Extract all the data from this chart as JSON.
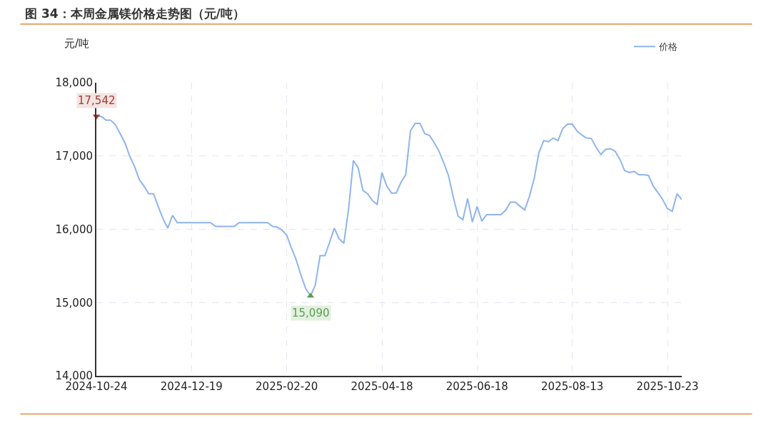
{
  "chart_data": {
    "type": "line",
    "title": "图 34：本周金属镁价格走势图（元/吨）",
    "ylabel": "元/吨",
    "categories": [
      "2024-10-24",
      null,
      null,
      null,
      null,
      null,
      null,
      null,
      null,
      null,
      null,
      null,
      null,
      null,
      null,
      null,
      null,
      null,
      null,
      null,
      "2024-12-19",
      null,
      null,
      null,
      null,
      null,
      null,
      null,
      null,
      null,
      null,
      null,
      null,
      null,
      null,
      null,
      null,
      null,
      null,
      null,
      "2025-02-20",
      null,
      null,
      null,
      null,
      null,
      null,
      null,
      null,
      null,
      null,
      null,
      null,
      null,
      null,
      null,
      null,
      null,
      null,
      null,
      "2025-04-18",
      null,
      null,
      null,
      null,
      null,
      null,
      null,
      null,
      null,
      null,
      null,
      null,
      null,
      null,
      null,
      null,
      null,
      null,
      null,
      "2025-06-18",
      null,
      null,
      null,
      null,
      null,
      null,
      null,
      null,
      null,
      null,
      null,
      null,
      null,
      null,
      null,
      null,
      null,
      null,
      null,
      "2025-08-13",
      null,
      null,
      null,
      null,
      null,
      null,
      null,
      null,
      null,
      null,
      null,
      null,
      null,
      null,
      null,
      null,
      null,
      null,
      null,
      "2025-10-23",
      null,
      null,
      null
    ],
    "series": [
      {
        "name": "价格",
        "color": "#8fb4ec",
        "values": [
          17542,
          17542,
          17490,
          17490,
          17425,
          17305,
          17180,
          17000,
          16860,
          16680,
          16590,
          16485,
          16485,
          16310,
          16145,
          16015,
          16190,
          16090,
          16090,
          16090,
          16090,
          16090,
          16090,
          16090,
          16090,
          16040,
          16040,
          16040,
          16040,
          16040,
          16090,
          16090,
          16090,
          16090,
          16090,
          16090,
          16090,
          16040,
          16030,
          15990,
          15920,
          15740,
          15580,
          15370,
          15190,
          15090,
          15240,
          15640,
          15640,
          15820,
          16015,
          15870,
          15810,
          16280,
          16940,
          16840,
          16530,
          16485,
          16390,
          16340,
          16775,
          16590,
          16495,
          16495,
          16640,
          16745,
          17345,
          17445,
          17445,
          17305,
          17280,
          17180,
          17065,
          16905,
          16730,
          16435,
          16180,
          16130,
          16420,
          16100,
          16310,
          16110,
          16200,
          16200,
          16200,
          16200,
          16260,
          16370,
          16370,
          16315,
          16265,
          16450,
          16695,
          17050,
          17210,
          17195,
          17245,
          17210,
          17375,
          17435,
          17435,
          17340,
          17285,
          17245,
          17240,
          17120,
          17020,
          17090,
          17100,
          17065,
          16955,
          16800,
          16775,
          16790,
          16745,
          16745,
          16735,
          16590,
          16500,
          16405,
          16280,
          16245,
          16485,
          16405
        ],
        "value_labels": [
          "17,542",
          null,
          null,
          null,
          null,
          null,
          null,
          null,
          null,
          null,
          null,
          null,
          null,
          null,
          null,
          null,
          null,
          null,
          null,
          null,
          null,
          null,
          null,
          null,
          null,
          null,
          null,
          null,
          null,
          null,
          null,
          null,
          null,
          null,
          null,
          null,
          null,
          null,
          null,
          null,
          null,
          null,
          null,
          null,
          null,
          "15,090",
          null,
          null,
          null,
          null,
          null,
          null,
          null,
          null,
          null,
          null,
          null,
          null,
          null,
          null,
          null,
          null,
          null,
          null,
          null,
          null,
          null,
          null,
          null,
          null,
          null,
          null,
          null,
          null,
          null,
          null,
          null,
          null,
          null,
          null,
          null,
          null,
          null,
          null,
          null,
          null,
          null,
          null,
          null,
          null,
          null,
          null,
          null,
          null,
          null,
          null,
          null,
          null,
          null,
          null,
          null,
          null,
          null,
          null,
          null,
          null,
          null,
          null,
          null,
          null,
          null,
          null,
          null,
          null,
          null,
          null,
          null,
          null,
          null,
          null,
          null,
          null,
          null,
          null
        ]
      }
    ],
    "ylim": [
      14000,
      18000
    ],
    "yticks": [
      {
        "value": 14000,
        "label": "14,000"
      },
      {
        "value": 15000,
        "label": "15,000"
      },
      {
        "value": 16000,
        "label": "16,000"
      },
      {
        "value": 17000,
        "label": "17,000"
      },
      {
        "value": 18000,
        "label": "18,000"
      }
    ],
    "grid": true,
    "legend": "top right",
    "marker": "none",
    "line_style": "solid"
  }
}
